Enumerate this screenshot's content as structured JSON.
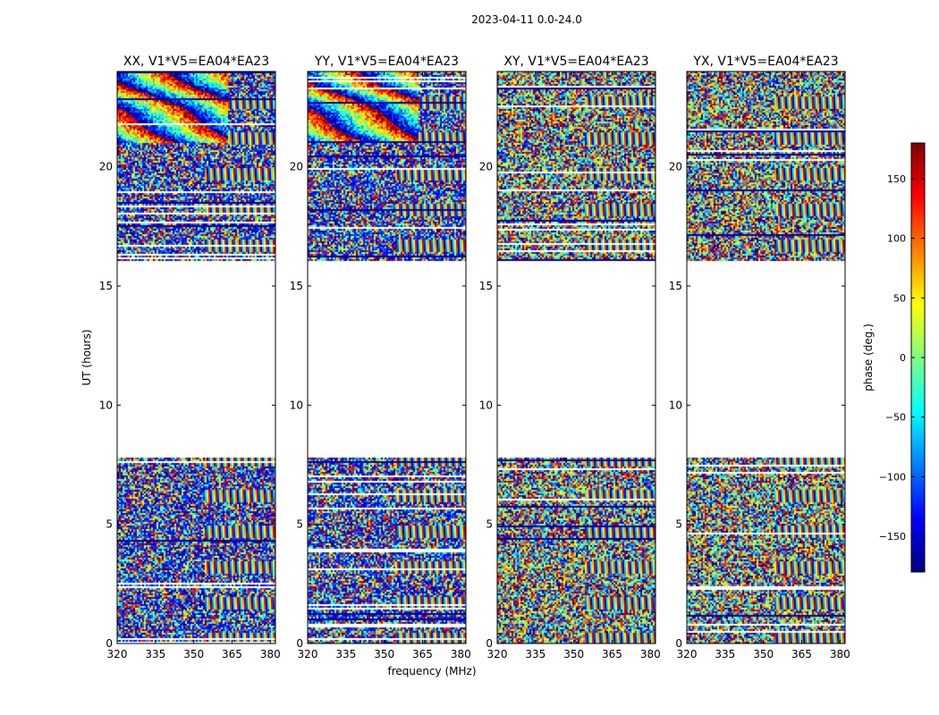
{
  "figure_title": "2023-04-11 0.0-24.0",
  "colorbar": {
    "label": "phase (deg.)",
    "range": [
      -180,
      180
    ],
    "ticks": [
      -150,
      -100,
      -50,
      0,
      50,
      100,
      150
    ],
    "tick_labels": [
      "−150",
      "−100",
      "−50",
      "0",
      "50",
      "100",
      "150"
    ],
    "colormap": [
      "#00007f",
      "#0000ff",
      "#007fff",
      "#00ffff",
      "#7fff7f",
      "#ffff00",
      "#ff7f00",
      "#ff0000",
      "#7f0000"
    ]
  },
  "chart_data": [
    {
      "type": "heatmap",
      "title": "XX, V1*V5=EA04*EA23",
      "xlabel": "",
      "ylabel": "UT (hours)",
      "xlim": [
        320,
        382
      ],
      "ylim": [
        0,
        24
      ],
      "x_ticks": [
        320,
        335,
        350,
        365,
        380
      ],
      "y_ticks": [
        0,
        5,
        10,
        15,
        20
      ],
      "z": "phase (deg.)",
      "z_range": [
        -180,
        180
      ],
      "data_ut_ranges": [
        [
          0,
          7.8
        ],
        [
          16.1,
          24
        ]
      ],
      "gap_ut_range": [
        7.8,
        16.1
      ]
    },
    {
      "type": "heatmap",
      "title": "YY, V1*V5=EA04*EA23",
      "xlabel": "frequency (MHz)",
      "ylabel": "",
      "xlim": [
        320,
        382
      ],
      "ylim": [
        0,
        24
      ],
      "x_ticks": [
        320,
        335,
        350,
        365,
        380
      ],
      "y_ticks": [
        0,
        5,
        10,
        15,
        20
      ],
      "z": "phase (deg.)",
      "z_range": [
        -180,
        180
      ],
      "data_ut_ranges": [
        [
          0,
          7.8
        ],
        [
          16.1,
          24
        ]
      ],
      "gap_ut_range": [
        7.8,
        16.1
      ]
    },
    {
      "type": "heatmap",
      "title": "XY, V1*V5=EA04*EA23",
      "xlabel": "",
      "ylabel": "",
      "xlim": [
        320,
        382
      ],
      "ylim": [
        0,
        24
      ],
      "x_ticks": [
        320,
        335,
        350,
        365,
        380
      ],
      "y_ticks": [
        0,
        5,
        10,
        15,
        20
      ],
      "z": "phase (deg.)",
      "z_range": [
        -180,
        180
      ],
      "data_ut_ranges": [
        [
          0,
          7.8
        ],
        [
          16.1,
          24
        ]
      ],
      "gap_ut_range": [
        7.8,
        16.1
      ]
    },
    {
      "type": "heatmap",
      "title": "YX, V1*V5=EA04*EA23",
      "xlabel": "",
      "ylabel": "",
      "xlim": [
        320,
        382
      ],
      "ylim": [
        0,
        24
      ],
      "x_ticks": [
        320,
        335,
        350,
        365,
        380
      ],
      "y_ticks": [
        0,
        5,
        10,
        15,
        20
      ],
      "z": "phase (deg.)",
      "z_range": [
        -180,
        180
      ],
      "data_ut_ranges": [
        [
          0,
          7.8
        ],
        [
          16.1,
          24
        ]
      ],
      "gap_ut_range": [
        7.8,
        16.1
      ]
    }
  ]
}
